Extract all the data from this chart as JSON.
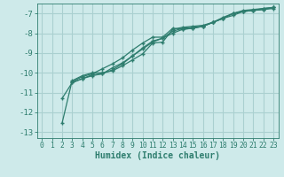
{
  "xlabel": "Humidex (Indice chaleur)",
  "bg_color": "#ceeaea",
  "grid_color": "#aad0d0",
  "line_color": "#2e7d6e",
  "xlim": [
    -0.5,
    23.5
  ],
  "ylim": [
    -13.3,
    -6.5
  ],
  "yticks": [
    -13,
    -12,
    -11,
    -10,
    -9,
    -8,
    -7
  ],
  "xticks": [
    0,
    1,
    2,
    3,
    4,
    5,
    6,
    7,
    8,
    9,
    10,
    11,
    12,
    13,
    14,
    15,
    16,
    17,
    18,
    19,
    20,
    21,
    22,
    23
  ],
  "series": [
    [
      null,
      null,
      -12.55,
      -10.4,
      -10.15,
      -10.0,
      -10.0,
      -9.9,
      -9.65,
      -9.35,
      -9.05,
      -8.5,
      -8.45,
      -7.8,
      -7.7,
      -7.65,
      -7.6,
      -7.45,
      -7.25,
      -7.1,
      -6.9,
      -6.85,
      -6.8,
      -6.75
    ],
    [
      null,
      null,
      null,
      -10.45,
      -10.2,
      -10.05,
      -9.8,
      -9.55,
      -9.25,
      -8.85,
      -8.5,
      -8.2,
      -8.2,
      -7.75,
      -7.8,
      -7.75,
      -7.65,
      -7.45,
      -7.2,
      -7.0,
      -6.85,
      -6.8,
      -6.75,
      -6.7
    ],
    [
      null,
      null,
      null,
      -10.5,
      -10.3,
      -10.1,
      -10.05,
      -9.75,
      -9.5,
      -9.15,
      -8.75,
      -8.4,
      -8.25,
      -8.0,
      -7.8,
      -7.75,
      -7.65,
      -7.45,
      -7.25,
      -7.0,
      -6.9,
      -6.85,
      -6.75,
      -6.7
    ],
    [
      null,
      null,
      -11.3,
      -10.5,
      -10.3,
      -10.15,
      -10.05,
      -9.85,
      -9.55,
      -9.15,
      -8.8,
      -8.45,
      -8.25,
      -7.9,
      -7.75,
      -7.7,
      -7.65,
      -7.45,
      -7.25,
      -7.0,
      -6.9,
      -6.85,
      -6.8,
      -6.7
    ]
  ]
}
